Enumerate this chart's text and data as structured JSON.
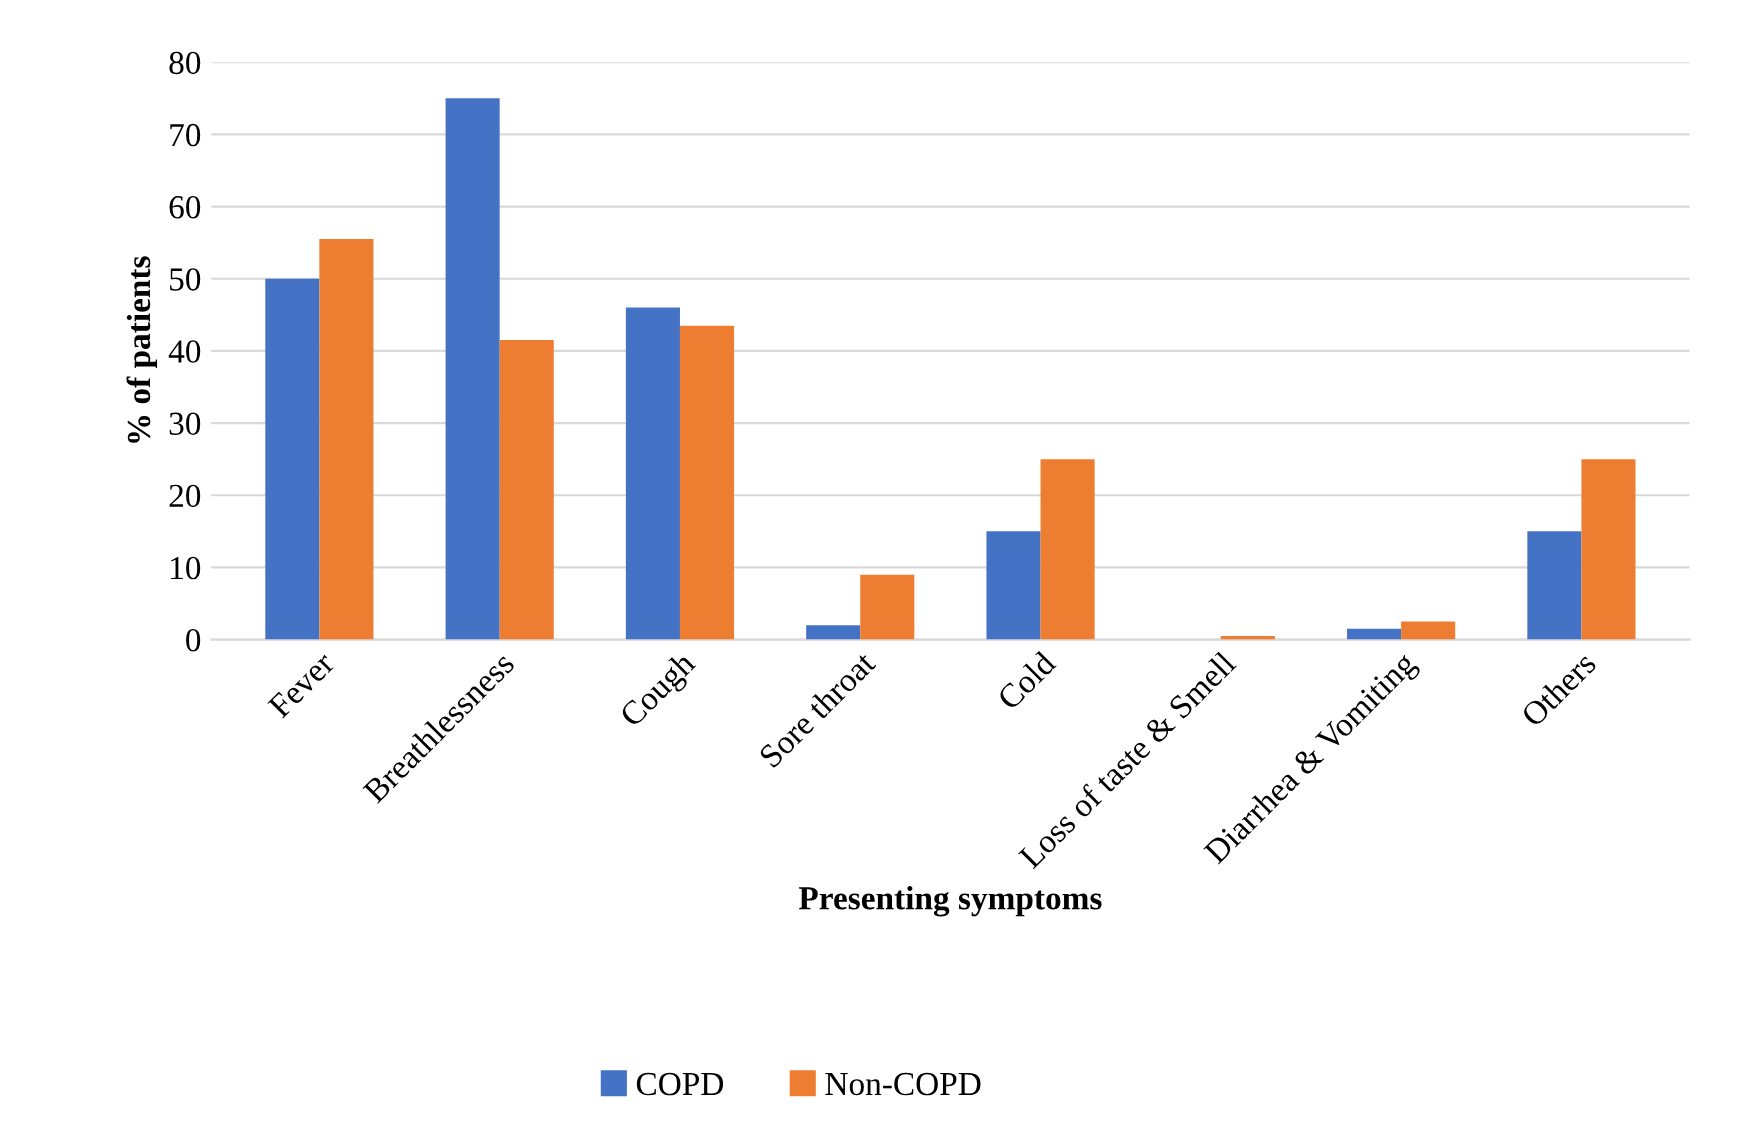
{
  "chart_data": {
    "type": "bar",
    "xlabel": "Presenting symptoms",
    "ylabel": "% of patients",
    "categories": [
      "Fever",
      "Breathlessness",
      "Cough",
      "Sore throat",
      "Cold",
      "Loss of taste & Smell",
      "Diarrhea & Vomiting",
      "Others"
    ],
    "series": [
      {
        "name": "COPD",
        "color": "#4472c4",
        "values": [
          50,
          75,
          46,
          2,
          15,
          0,
          1.5,
          15
        ]
      },
      {
        "name": "Non-COPD",
        "color": "#ed7d31",
        "values": [
          55.5,
          41.5,
          43.5,
          9,
          25,
          0.5,
          2.5,
          25
        ]
      }
    ],
    "ylim": [
      0,
      80
    ],
    "yticks": [
      0,
      10,
      20,
      30,
      40,
      50,
      60,
      70,
      80
    ],
    "grid": "y",
    "legend": "bottom"
  }
}
